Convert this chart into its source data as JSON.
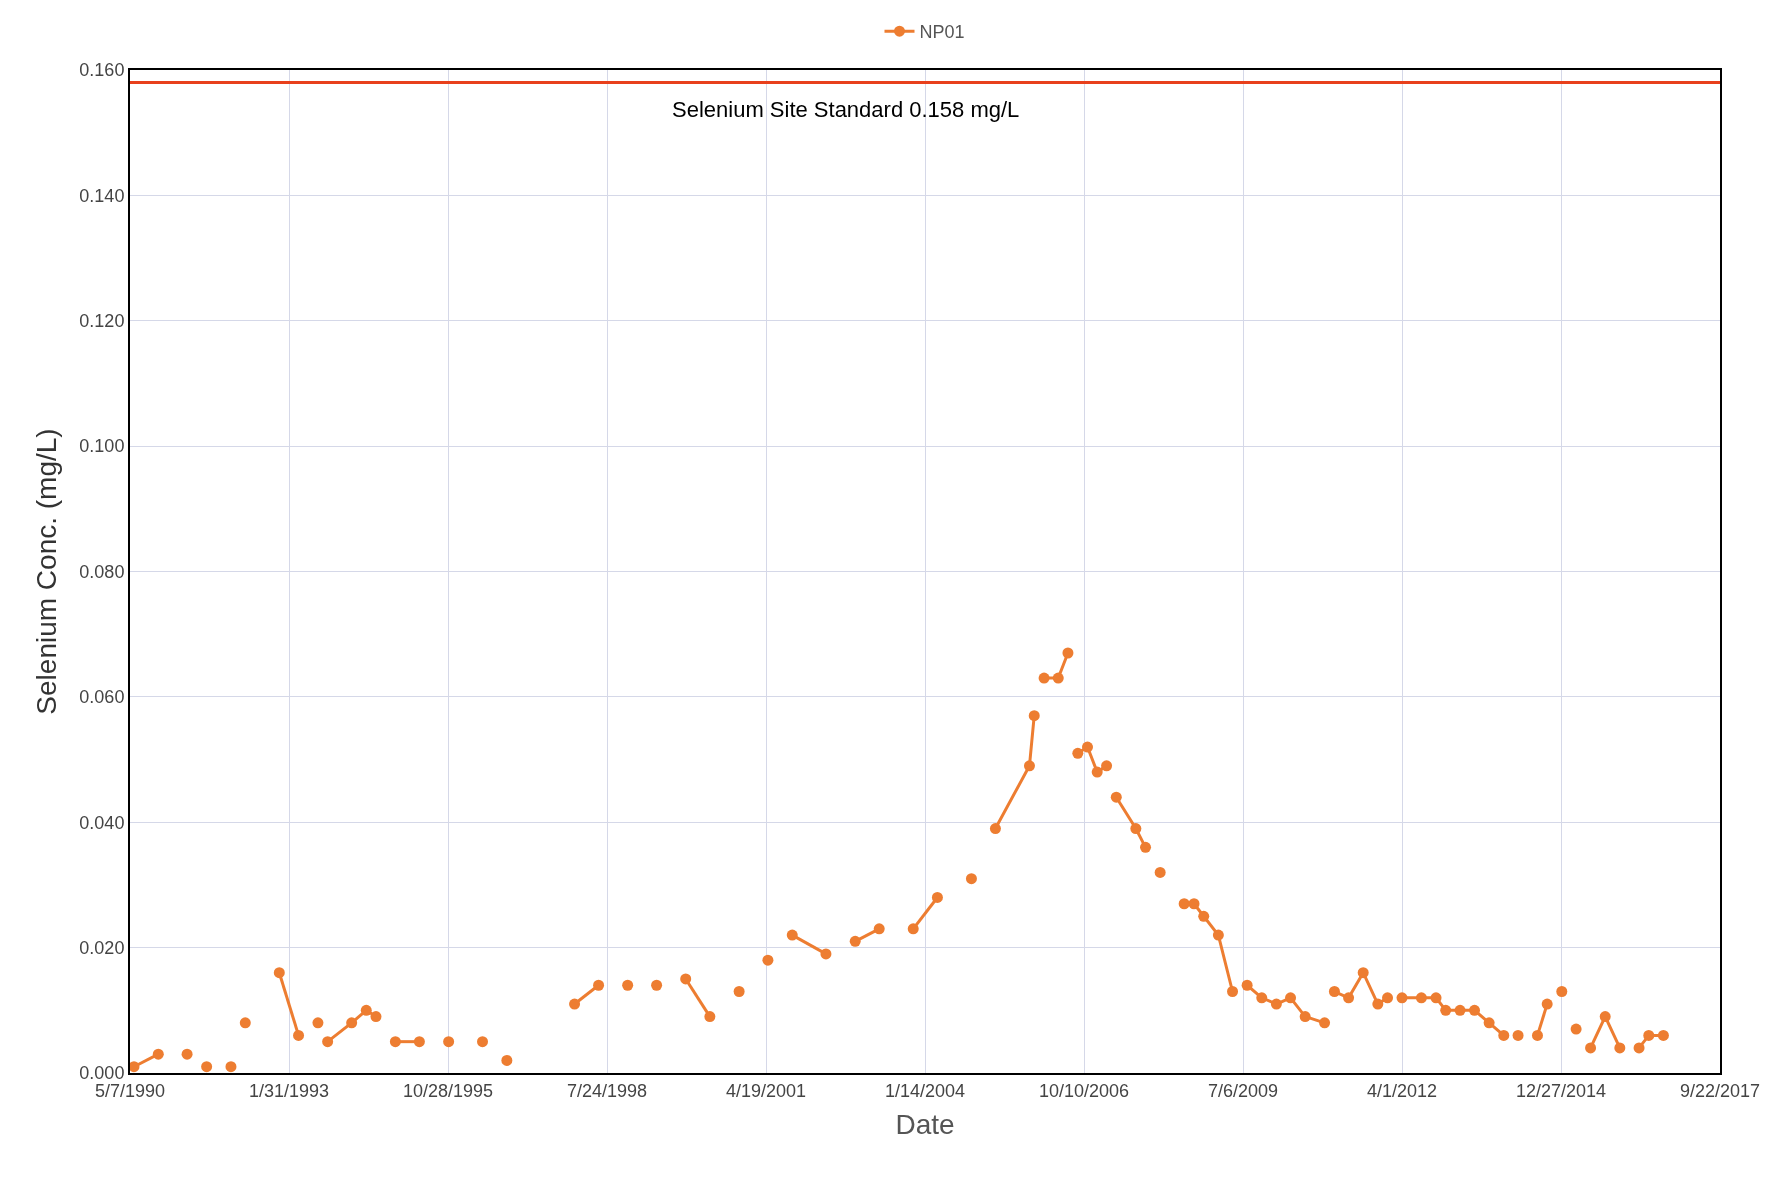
{
  "chart_data": {
    "type": "line",
    "xlabel": "Date",
    "ylabel": "Selenium Conc. (mg/L)",
    "series": [
      {
        "name": "NP01",
        "color": "#ed7d31",
        "x": [
          "1990-06",
          "1990-11"
        ],
        "values": [
          0.001,
          0.003
        ]
      },
      {
        "color": "#ed7d31",
        "x": [
          "1991-05"
        ],
        "values": [
          0.003
        ]
      },
      {
        "color": "#ed7d31",
        "x": [
          "1991-09"
        ],
        "values": [
          0.001
        ]
      },
      {
        "color": "#ed7d31",
        "x": [
          "1992-02"
        ],
        "values": [
          0.001
        ]
      },
      {
        "color": "#ed7d31",
        "x": [
          "1992-05"
        ],
        "values": [
          0.008
        ]
      },
      {
        "color": "#ed7d31",
        "x": [
          "1992-12",
          "1993-04"
        ],
        "values": [
          0.016,
          0.006
        ]
      },
      {
        "color": "#ed7d31",
        "x": [
          "1993-08"
        ],
        "values": [
          0.008
        ]
      },
      {
        "color": "#ed7d31",
        "x": [
          "1993-10",
          "1994-03",
          "1994-06",
          "1994-08"
        ],
        "values": [
          0.005,
          0.008,
          0.01,
          0.009
        ]
      },
      {
        "color": "#ed7d31",
        "x": [
          "1994-12",
          "1995-05"
        ],
        "values": [
          0.005,
          0.005
        ]
      },
      {
        "color": "#ed7d31",
        "x": [
          "1995-11"
        ],
        "values": [
          0.005
        ]
      },
      {
        "color": "#ed7d31",
        "x": [
          "1996-06"
        ],
        "values": [
          0.005
        ]
      },
      {
        "color": "#ed7d31",
        "x": [
          "1996-11"
        ],
        "values": [
          0.002
        ]
      },
      {
        "color": "#ed7d31",
        "x": [
          "1998-01",
          "1998-06"
        ],
        "values": [
          0.011,
          0.014
        ]
      },
      {
        "color": "#ed7d31",
        "x": [
          "1998-12"
        ],
        "values": [
          0.014
        ]
      },
      {
        "color": "#ed7d31",
        "x": [
          "1999-06"
        ],
        "values": [
          0.014
        ]
      },
      {
        "color": "#ed7d31",
        "x": [
          "1999-12",
          "2000-05"
        ],
        "values": [
          0.015,
          0.009
        ]
      },
      {
        "color": "#ed7d31",
        "x": [
          "2000-11"
        ],
        "values": [
          0.013
        ]
      },
      {
        "color": "#ed7d31",
        "x": [
          "2001-05"
        ],
        "values": [
          0.018
        ]
      },
      {
        "color": "#ed7d31",
        "x": [
          "2001-10",
          "2002-05"
        ],
        "values": [
          0.022,
          0.019
        ]
      },
      {
        "color": "#ed7d31",
        "x": [
          "2002-11",
          "2003-04"
        ],
        "values": [
          0.021,
          0.023
        ]
      },
      {
        "color": "#ed7d31",
        "x": [
          "2003-11",
          "2004-04"
        ],
        "values": [
          0.023,
          0.028
        ]
      },
      {
        "color": "#ed7d31",
        "x": [
          "2004-11"
        ],
        "values": [
          0.031
        ]
      },
      {
        "color": "#ed7d31",
        "x": [
          "2005-04",
          "2005-11",
          "2005-12"
        ],
        "values": [
          0.039,
          0.049,
          0.057
        ]
      },
      {
        "color": "#ed7d31",
        "x": [
          "2006-02",
          "2006-05",
          "2006-07"
        ],
        "values": [
          0.063,
          0.063,
          0.067
        ]
      },
      {
        "color": "#ed7d31",
        "x": [
          "2006-09",
          "2006-11",
          "2007-01",
          "2007-03"
        ],
        "values": [
          0.051,
          0.052,
          0.048,
          0.049
        ]
      },
      {
        "color": "#ed7d31",
        "x": [
          "2007-05",
          "2007-09",
          "2007-11"
        ],
        "values": [
          0.044,
          0.039,
          0.036
        ]
      },
      {
        "color": "#ed7d31",
        "x": [
          "2008-02"
        ],
        "values": [
          0.032
        ]
      },
      {
        "color": "#ed7d31",
        "x": [
          "2008-07",
          "2008-09",
          "2008-11",
          "2009-02",
          "2009-05"
        ],
        "values": [
          0.027,
          0.027,
          0.025,
          0.022,
          0.013
        ]
      },
      {
        "color": "#ed7d31",
        "x": [
          "2009-08",
          "2009-11",
          "2010-02",
          "2010-05",
          "2010-08",
          "2010-12"
        ],
        "values": [
          0.014,
          0.012,
          0.011,
          0.012,
          0.009,
          0.008
        ]
      },
      {
        "color": "#ed7d31",
        "x": [
          "2011-02",
          "2011-05",
          "2011-08",
          "2011-11",
          "2012-01"
        ],
        "values": [
          0.013,
          0.012,
          0.016,
          0.011,
          0.012
        ]
      },
      {
        "color": "#ed7d31",
        "x": [
          "2012-04",
          "2012-08",
          "2012-11",
          "2013-01",
          "2013-04",
          "2013-07",
          "2013-10",
          "2014-01"
        ],
        "values": [
          0.012,
          0.012,
          0.012,
          0.01,
          0.01,
          0.01,
          0.008,
          0.006
        ]
      },
      {
        "color": "#ed7d31",
        "x": [
          "2014-04"
        ],
        "values": [
          0.006
        ]
      },
      {
        "color": "#ed7d31",
        "x": [
          "2014-08",
          "2014-10"
        ],
        "values": [
          0.006,
          0.011
        ]
      },
      {
        "color": "#ed7d31",
        "x": [
          "2015-01"
        ],
        "values": [
          0.013
        ]
      },
      {
        "color": "#ed7d31",
        "x": [
          "2015-04"
        ],
        "values": [
          0.007
        ]
      },
      {
        "color": "#ed7d31",
        "x": [
          "2015-07",
          "2015-10",
          "2016-01"
        ],
        "values": [
          0.004,
          0.009,
          0.004
        ]
      },
      {
        "color": "#ed7d31",
        "x": [
          "2016-05",
          "2016-07",
          "2016-10"
        ],
        "values": [
          0.004,
          0.006,
          0.006
        ]
      }
    ],
    "xlim": [
      "1990-05-07",
      "2017-09-22"
    ],
    "xticks": [
      {
        "value": "1990-05-07",
        "label": "5/7/1990"
      },
      {
        "value": "1993-01-31",
        "label": "1/31/1993"
      },
      {
        "value": "1995-10-28",
        "label": "10/28/1995"
      },
      {
        "value": "1998-07-24",
        "label": "7/24/1998"
      },
      {
        "value": "2001-04-19",
        "label": "4/19/2001"
      },
      {
        "value": "2004-01-14",
        "label": "1/14/2004"
      },
      {
        "value": "2006-10-10",
        "label": "10/10/2006"
      },
      {
        "value": "2009-07-06",
        "label": "7/6/2009"
      },
      {
        "value": "2012-04-01",
        "label": "4/1/2012"
      },
      {
        "value": "2014-12-27",
        "label": "12/27/2014"
      },
      {
        "value": "2017-09-22",
        "label": "9/22/2017"
      }
    ],
    "ylim": [
      0,
      0.16
    ],
    "yticks": [
      {
        "value": 0,
        "label": "0.000"
      },
      {
        "value": 0.02,
        "label": "0.020"
      },
      {
        "value": 0.04,
        "label": "0.040"
      },
      {
        "value": 0.06,
        "label": "0.060"
      },
      {
        "value": 0.08,
        "label": "0.080"
      },
      {
        "value": 0.1,
        "label": "0.100"
      },
      {
        "value": 0.12,
        "label": "0.120"
      },
      {
        "value": 0.14,
        "label": "0.140"
      },
      {
        "value": 0.16,
        "label": "0.160"
      }
    ],
    "ref_lines": [
      {
        "axis": "y",
        "value": 0.158,
        "label": "Selenium Site Standard 0.158 mg/L",
        "color": "#e8401c"
      }
    ],
    "grid": true,
    "legend": "top",
    "marker": "circle",
    "line_style": "solid"
  }
}
